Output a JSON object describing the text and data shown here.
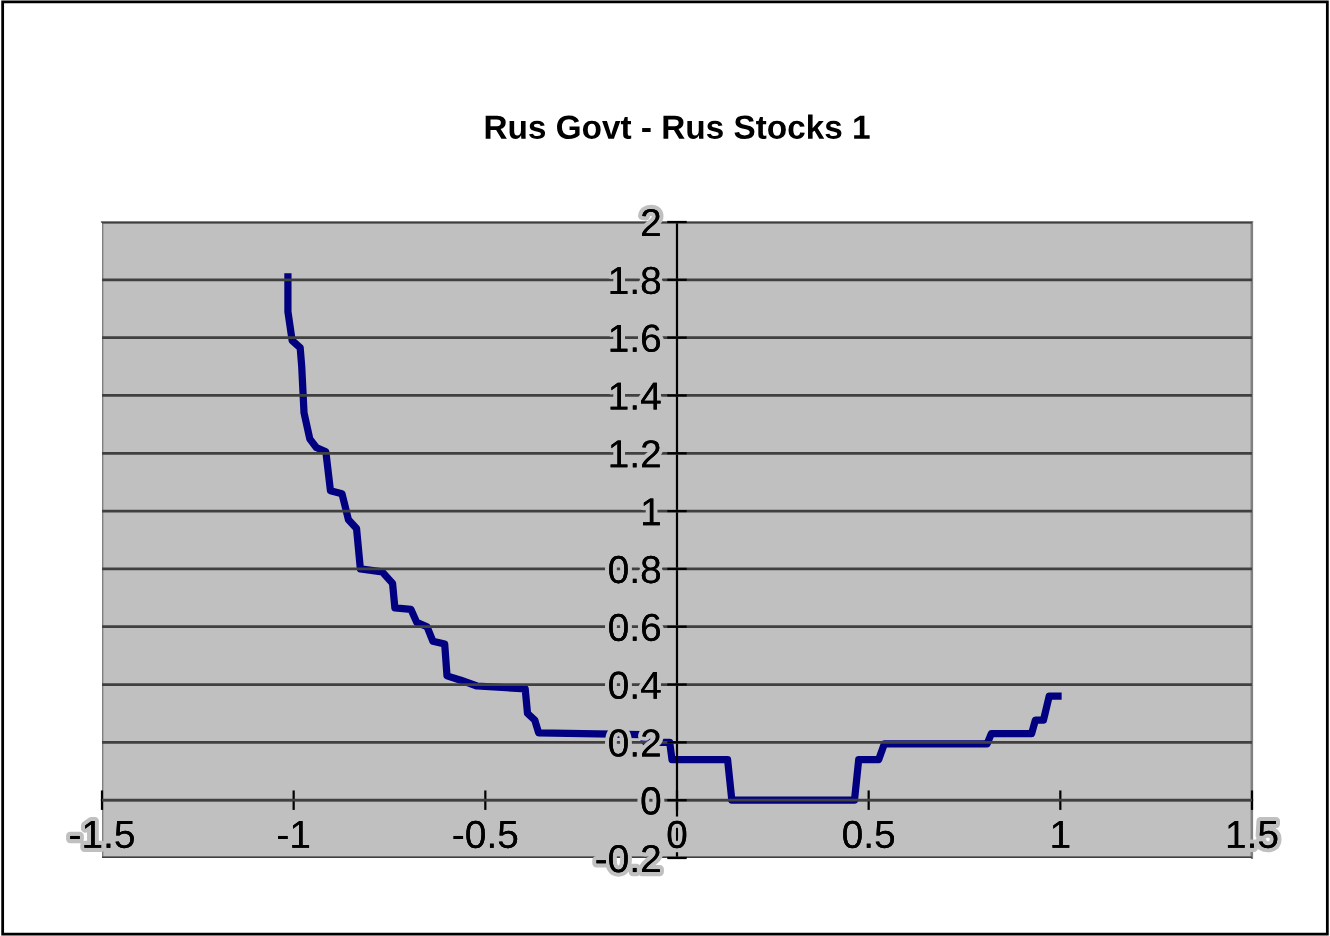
{
  "chart_data": {
    "type": "line",
    "title": "Rus Govt - Rus Stocks 1",
    "series": [
      {
        "color": "#000080",
        "x": [
          -1.015,
          -1.015,
          -1.004,
          -0.983,
          -0.979,
          -0.973,
          -0.958,
          -0.941,
          -0.916,
          -0.912,
          -0.904,
          -0.874,
          -0.857,
          -0.836,
          -0.826,
          -0.769,
          -0.742,
          -0.736,
          -0.694,
          -0.679,
          -0.652,
          -0.637,
          -0.606,
          -0.6,
          -0.564,
          -0.522,
          -0.396,
          -0.39,
          -0.371,
          -0.361,
          -0.092,
          -0.082,
          -0.019,
          -0.013,
          0.132,
          0.143,
          0.463,
          0.474,
          0.526,
          0.541,
          0.809,
          0.82,
          0.925,
          0.935,
          0.956,
          0.971,
          0.994
        ],
        "values": [
          1.81,
          1.69,
          1.59,
          1.565,
          1.5,
          1.34,
          1.25,
          1.22,
          1.205,
          1.16,
          1.07,
          1.06,
          0.97,
          0.94,
          0.8,
          0.79,
          0.75,
          0.665,
          0.66,
          0.615,
          0.6,
          0.55,
          0.54,
          0.43,
          0.415,
          0.395,
          0.385,
          0.3,
          0.277,
          0.233,
          0.227,
          0.2,
          0.2,
          0.14,
          0.14,
          0,
          0,
          0.14,
          0.14,
          0.195,
          0.195,
          0.23,
          0.23,
          0.277,
          0.277,
          0.36,
          0.36
        ]
      }
    ],
    "xlim": [
      -1.5,
      1.5
    ],
    "xticks": [
      -1.5,
      -1,
      -0.5,
      0,
      0.5,
      1,
      1.5
    ],
    "ylim": [
      -0.2,
      2
    ],
    "yticks": [
      -0.2,
      0,
      0.2,
      0.4,
      0.6,
      0.8,
      1,
      1.2,
      1.4,
      1.6,
      1.8,
      2
    ],
    "grid": "y",
    "legend": false,
    "marker": "none",
    "line_style": "solid"
  }
}
